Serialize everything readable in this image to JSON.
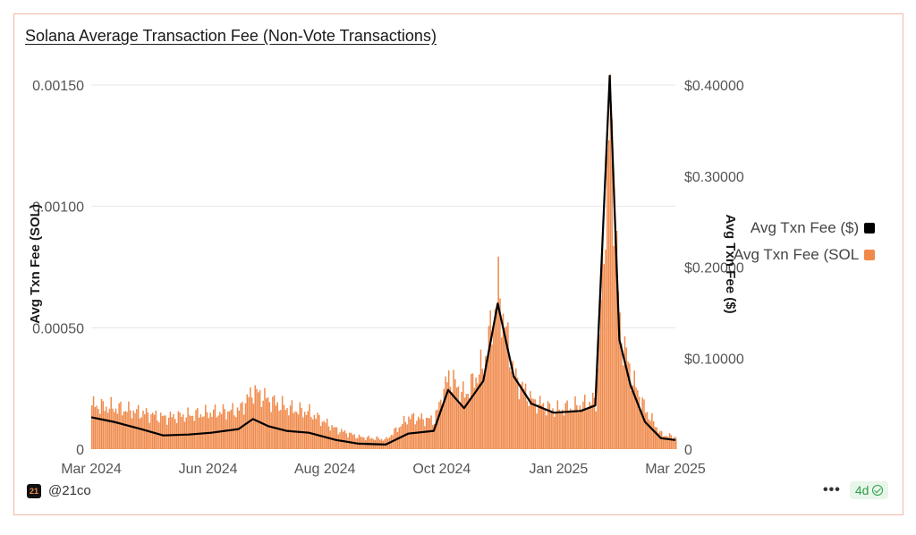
{
  "colors": {
    "bars": "#f08a4b",
    "line": "#000000",
    "card_border": "#f2b8a6",
    "badge": "#2f9e4a"
  },
  "chart_data": {
    "type": "bar+line",
    "title": "Solana Average Transaction Fee (Non-Vote Transactions)",
    "x_ticks": [
      "Mar 2024",
      "Jun 2024",
      "Aug 2024",
      "Oct 2024",
      "Jan 2025",
      "Mar 2025"
    ],
    "y_left": {
      "label": "Avg Txn Fee (SOL)",
      "ticks": [
        "0",
        "0.00050",
        "0.00100",
        "0.00150"
      ],
      "range": [
        0,
        0.0015
      ]
    },
    "y_right": {
      "label": "Avg Txn Fee ($)",
      "ticks": [
        "0",
        "$0.10000",
        "$0.20000",
        "$0.30000",
        "$0.40000"
      ],
      "range": [
        0,
        0.4
      ]
    },
    "grid": true,
    "legend_position": "right",
    "x_range": [
      "2024-03-01",
      "2025-03-01"
    ],
    "series": [
      {
        "name": "Avg Txn Fee (SOL",
        "axis": "left",
        "type": "bar",
        "points": [
          [
            "2024-03-01",
            0.00018
          ],
          [
            "2024-03-15",
            0.00017
          ],
          [
            "2024-04-01",
            0.00015
          ],
          [
            "2024-04-15",
            0.00013
          ],
          [
            "2024-05-01",
            0.00014
          ],
          [
            "2024-05-15",
            0.00015
          ],
          [
            "2024-06-01",
            0.00016
          ],
          [
            "2024-06-10",
            0.00024
          ],
          [
            "2024-06-20",
            0.0002
          ],
          [
            "2024-07-01",
            0.00017
          ],
          [
            "2024-07-15",
            0.00015
          ],
          [
            "2024-08-01",
            8e-05
          ],
          [
            "2024-08-15",
            5e-05
          ],
          [
            "2024-09-01",
            4e-05
          ],
          [
            "2024-09-15",
            0.00013
          ],
          [
            "2024-10-01",
            0.00012
          ],
          [
            "2024-10-10",
            0.0003
          ],
          [
            "2024-10-20",
            0.00022
          ],
          [
            "2024-11-01",
            0.00035
          ],
          [
            "2024-11-10",
            0.00065
          ],
          [
            "2024-11-20",
            0.0003
          ],
          [
            "2024-12-01",
            0.0002
          ],
          [
            "2024-12-15",
            0.00016
          ],
          [
            "2025-01-01",
            0.00018
          ],
          [
            "2025-01-10",
            0.0002
          ],
          [
            "2025-01-19",
            0.0014
          ],
          [
            "2025-01-25",
            0.0005
          ],
          [
            "2025-02-01",
            0.0003
          ],
          [
            "2025-02-10",
            0.00016
          ],
          [
            "2025-02-20",
            6e-05
          ],
          [
            "2025-03-01",
            5e-05
          ]
        ]
      },
      {
        "name": "Avg Txn Fee ($)",
        "axis": "right",
        "type": "line",
        "points": [
          [
            "2024-03-01",
            0.035
          ],
          [
            "2024-03-15",
            0.03
          ],
          [
            "2024-04-01",
            0.022
          ],
          [
            "2024-04-15",
            0.015
          ],
          [
            "2024-05-01",
            0.016
          ],
          [
            "2024-05-15",
            0.018
          ],
          [
            "2024-06-01",
            0.022
          ],
          [
            "2024-06-10",
            0.033
          ],
          [
            "2024-06-20",
            0.025
          ],
          [
            "2024-07-01",
            0.02
          ],
          [
            "2024-07-15",
            0.018
          ],
          [
            "2024-08-01",
            0.01
          ],
          [
            "2024-08-15",
            0.006
          ],
          [
            "2024-09-01",
            0.005
          ],
          [
            "2024-09-15",
            0.017
          ],
          [
            "2024-10-01",
            0.02
          ],
          [
            "2024-10-10",
            0.065
          ],
          [
            "2024-10-20",
            0.045
          ],
          [
            "2024-11-01",
            0.075
          ],
          [
            "2024-11-10",
            0.16
          ],
          [
            "2024-11-20",
            0.08
          ],
          [
            "2024-12-01",
            0.05
          ],
          [
            "2024-12-15",
            0.04
          ],
          [
            "2025-01-01",
            0.042
          ],
          [
            "2025-01-10",
            0.048
          ],
          [
            "2025-01-19",
            0.41
          ],
          [
            "2025-01-25",
            0.12
          ],
          [
            "2025-02-01",
            0.07
          ],
          [
            "2025-02-10",
            0.03
          ],
          [
            "2025-02-20",
            0.012
          ],
          [
            "2025-03-01",
            0.01
          ]
        ]
      }
    ]
  },
  "footer": {
    "handle": "@21co",
    "logo_text": "21",
    "menu": "•••",
    "age": "4d"
  }
}
